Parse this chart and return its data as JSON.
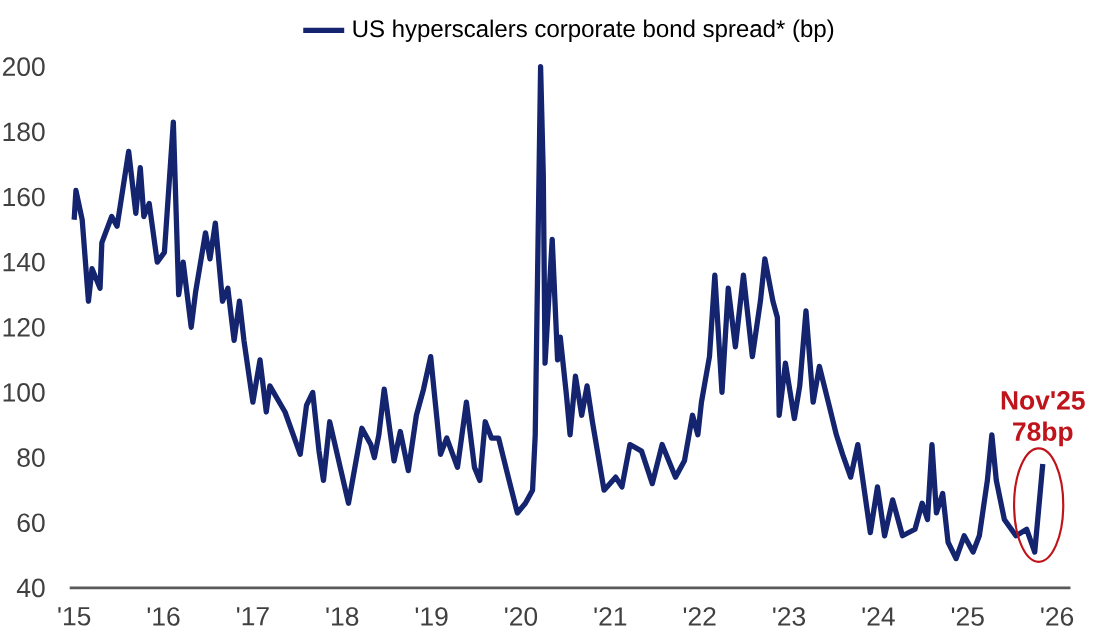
{
  "chart_data": {
    "type": "line",
    "x": [
      2015.0,
      2015.02,
      2015.09,
      2015.16,
      2015.2,
      2015.29,
      2015.31,
      2015.42,
      2015.48,
      2015.61,
      2015.69,
      2015.74,
      2015.78,
      2015.84,
      2015.93,
      2016.01,
      2016.11,
      2016.17,
      2016.22,
      2016.31,
      2016.36,
      2016.47,
      2016.52,
      2016.58,
      2016.66,
      2016.72,
      2016.79,
      2016.85,
      2016.9,
      2017.0,
      2017.08,
      2017.15,
      2017.19,
      2017.36,
      2017.53,
      2017.6,
      2017.67,
      2017.74,
      2017.79,
      2017.86,
      2018.07,
      2018.22,
      2018.32,
      2018.36,
      2018.41,
      2018.47,
      2018.58,
      2018.65,
      2018.74,
      2018.83,
      2018.91,
      2018.99,
      2019.03,
      2019.1,
      2019.17,
      2019.29,
      2019.39,
      2019.48,
      2019.54,
      2019.6,
      2019.67,
      2019.75,
      2019.84,
      2019.96,
      2020.05,
      2020.13,
      2020.16,
      2020.22,
      2020.25,
      2020.27,
      2020.35,
      2020.41,
      2020.44,
      2020.51,
      2020.55,
      2020.61,
      2020.68,
      2020.74,
      2020.8,
      2020.93,
      2021.06,
      2021.13,
      2021.22,
      2021.35,
      2021.47,
      2021.58,
      2021.73,
      2021.83,
      2021.92,
      2021.98,
      2022.02,
      2022.11,
      2022.17,
      2022.25,
      2022.32,
      2022.4,
      2022.49,
      2022.59,
      2022.68,
      2022.73,
      2022.82,
      2022.87,
      2022.89,
      2022.96,
      2023.06,
      2023.12,
      2023.19,
      2023.27,
      2023.34,
      2023.44,
      2023.53,
      2023.6,
      2023.69,
      2023.77,
      2023.91,
      2023.99,
      2024.07,
      2024.16,
      2024.27,
      2024.41,
      2024.49,
      2024.55,
      2024.6,
      2024.65,
      2024.72,
      2024.78,
      2024.87,
      2024.96,
      2025.06,
      2025.13,
      2025.22,
      2025.27,
      2025.32,
      2025.41,
      2025.54,
      2025.66,
      2025.75,
      2025.79,
      2025.84
    ],
    "series": [
      {
        "name": "US hyperscalers corporate bond spread* (bp)",
        "color": "#14246e",
        "values": [
          153,
          162,
          153,
          128,
          138,
          132,
          146,
          154,
          151,
          174,
          155,
          169,
          154,
          158,
          140,
          143,
          183,
          130,
          140,
          120,
          131,
          149,
          141,
          152,
          128,
          132,
          116,
          128,
          116,
          97,
          110,
          94,
          102,
          94,
          81,
          96,
          100,
          82,
          73,
          91,
          66,
          89,
          84,
          80,
          87,
          101,
          79,
          88,
          76,
          93,
          101,
          111,
          100,
          81,
          86,
          77,
          97,
          77,
          73,
          91,
          86,
          86,
          76,
          63,
          66,
          70,
          87,
          200,
          167,
          109,
          147,
          110,
          117,
          99,
          87,
          105,
          93,
          102,
          91,
          70,
          74,
          71,
          84,
          82,
          72,
          84,
          74,
          79,
          93,
          87,
          97,
          111,
          136,
          100,
          132,
          114,
          136,
          111,
          128,
          141,
          128,
          123,
          93,
          109,
          92,
          102,
          125,
          97,
          108,
          97,
          87,
          81,
          74,
          84,
          57,
          71,
          56,
          67,
          56,
          58,
          66,
          61,
          84,
          63,
          69,
          54,
          49,
          56,
          51,
          56,
          73,
          87,
          73,
          61,
          56,
          58,
          51,
          63,
          78
        ]
      }
    ],
    "xlim": [
      2014.95,
      2026.15
    ],
    "xticks": [
      {
        "value": 2015,
        "label": "'15"
      },
      {
        "value": 2016,
        "label": "'16"
      },
      {
        "value": 2017,
        "label": "'17"
      },
      {
        "value": 2018,
        "label": "'18"
      },
      {
        "value": 2019,
        "label": "'19"
      },
      {
        "value": 2020,
        "label": "'20"
      },
      {
        "value": 2021,
        "label": "'21"
      },
      {
        "value": 2022,
        "label": "'22"
      },
      {
        "value": 2023,
        "label": "'23"
      },
      {
        "value": 2024,
        "label": "'24"
      },
      {
        "value": 2025,
        "label": "'25"
      },
      {
        "value": 2026,
        "label": "'26"
      }
    ],
    "ylim": [
      40,
      200
    ],
    "yticks": [
      40,
      60,
      80,
      100,
      120,
      140,
      160,
      180,
      200
    ],
    "annotations": [
      {
        "text": "Nov'25 78bp",
        "x": 2025.84,
        "y": 78
      }
    ],
    "legend": "top",
    "line_style": "solid"
  }
}
